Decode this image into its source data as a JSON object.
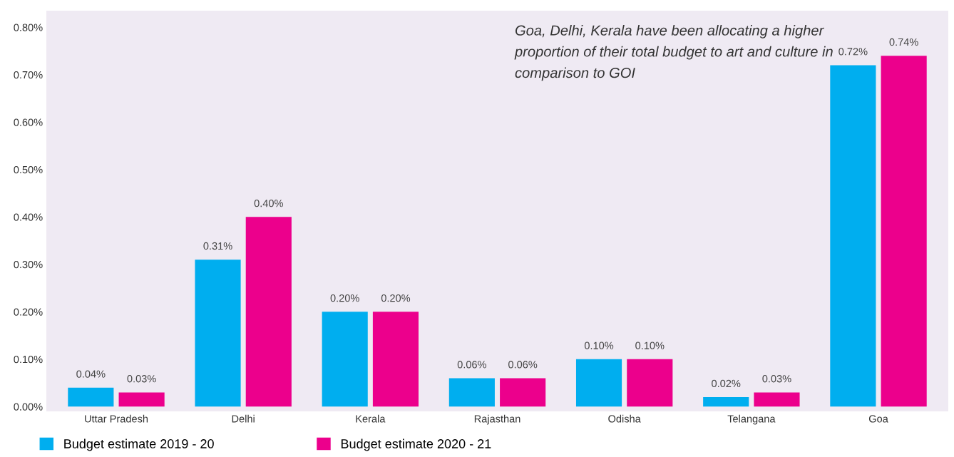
{
  "chart_data": {
    "type": "bar",
    "categories": [
      "Uttar Pradesh",
      "Delhi",
      "Kerala",
      "Rajasthan",
      "Odisha",
      "Telangana",
      "Goa"
    ],
    "series": [
      {
        "name": "Budget estimate 2019 - 20",
        "color": "#00aeef",
        "values": [
          0.04,
          0.31,
          0.2,
          0.06,
          0.1,
          0.02,
          0.72
        ],
        "value_labels": [
          "0.04%",
          "0.31%",
          "0.20%",
          "0.06%",
          "0.10%",
          "0.02%",
          "0.72%"
        ]
      },
      {
        "name": "Budget estimate 2020 - 21",
        "color": "#ec008c",
        "values": [
          0.03,
          0.4,
          0.2,
          0.06,
          0.1,
          0.03,
          0.74
        ],
        "value_labels": [
          "0.03%",
          "0.40%",
          "0.20%",
          "0.06%",
          "0.10%",
          "0.03%",
          "0.74%"
        ]
      }
    ],
    "ylim": [
      -0.01,
      0.835
    ],
    "yticks": [
      {
        "value": 0,
        "label": "0.00%"
      },
      {
        "value": 0.1,
        "label": "0.10%"
      },
      {
        "value": 0.2,
        "label": "0.20%"
      },
      {
        "value": 0.3,
        "label": "0.30%"
      },
      {
        "value": 0.4,
        "label": "0.40%"
      },
      {
        "value": 0.5,
        "label": "0.50%"
      },
      {
        "value": 0.6,
        "label": "0.60%"
      },
      {
        "value": 0.7,
        "label": "0.70%"
      },
      {
        "value": 0.8,
        "label": "0.80%"
      }
    ],
    "annotations": [
      "Goa, Delhi, Kerala have been allocating a higher proportion of their total budget to art and culture in comparison to GOI"
    ],
    "legend": "bottom left",
    "grid": false
  }
}
